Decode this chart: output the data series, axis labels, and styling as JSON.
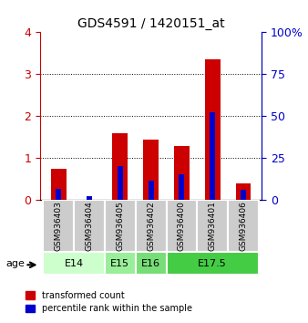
{
  "title": "GDS4591 / 1420151_at",
  "samples": [
    "GSM936403",
    "GSM936404",
    "GSM936405",
    "GSM936402",
    "GSM936400",
    "GSM936401",
    "GSM936406"
  ],
  "transformed_counts": [
    0.75,
    0.02,
    1.6,
    1.45,
    1.3,
    3.35,
    0.4
  ],
  "percentile_ranks_pct": [
    7.0,
    2.5,
    20.5,
    11.75,
    15.5,
    52.5,
    6.25
  ],
  "age_groups": [
    {
      "label": "E14",
      "samples": [
        0,
        1
      ],
      "color": "#ccffcc"
    },
    {
      "label": "E15",
      "samples": [
        2
      ],
      "color": "#99ee99"
    },
    {
      "label": "E16",
      "samples": [
        3
      ],
      "color": "#77dd77"
    },
    {
      "label": "E17.5",
      "samples": [
        4,
        5,
        6
      ],
      "color": "#44cc44"
    }
  ],
  "ylim_left": [
    0,
    4
  ],
  "ylim_right": [
    0,
    100
  ],
  "yticks_left": [
    0,
    1,
    2,
    3,
    4
  ],
  "yticks_right": [
    0,
    25,
    50,
    75,
    100
  ],
  "right_tick_labels": [
    "0",
    "25",
    "50",
    "75",
    "100%"
  ],
  "bar_color_red": "#cc0000",
  "bar_color_blue": "#0000cc",
  "bar_width": 0.5,
  "left_tick_color": "#cc0000",
  "right_tick_color": "#0000cc",
  "legend_red_label": "transformed count",
  "legend_blue_label": "percentile rank within the sample",
  "age_label": "age"
}
